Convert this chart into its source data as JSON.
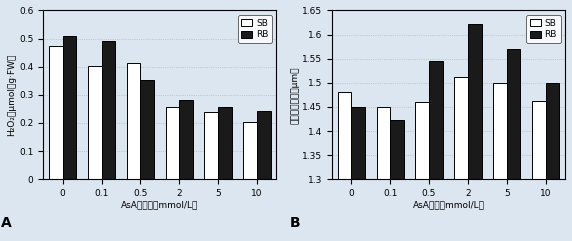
{
  "categories": [
    "0",
    "0.1",
    "0.5",
    "2",
    "5",
    "10"
  ],
  "chart_A": {
    "title": "A",
    "ylabel": "H₂O₂（μmol／g·FW）",
    "xlabel": "AsA的浓度（mmol/L）",
    "ylim": [
      0,
      0.6
    ],
    "yticks": [
      0,
      0.1,
      0.2,
      0.3,
      0.4,
      0.5,
      0.6
    ],
    "SB": [
      0.475,
      0.402,
      0.413,
      0.255,
      0.238,
      0.202
    ],
    "RB": [
      0.51,
      0.49,
      0.352,
      0.282,
      0.258,
      0.242
    ]
  },
  "chart_B": {
    "title": "B",
    "ylabel": "叶片气孔开度（μm）",
    "xlabel": "AsA浓度（mmol/L）",
    "ylim": [
      1.3,
      1.65
    ],
    "yticks": [
      1.3,
      1.35,
      1.4,
      1.45,
      1.5,
      1.55,
      1.6,
      1.65
    ],
    "SB": [
      1.48,
      1.45,
      1.46,
      1.513,
      1.5,
      1.462
    ],
    "RB": [
      1.45,
      1.422,
      1.545,
      1.622,
      1.57,
      1.5
    ]
  },
  "bar_width": 0.35,
  "sb_color": "#ffffff",
  "rb_color": "#1a1a1a",
  "edge_color": "#000000",
  "background_color": "#dce6f1",
  "legend_labels": [
    "SB",
    "RB"
  ]
}
